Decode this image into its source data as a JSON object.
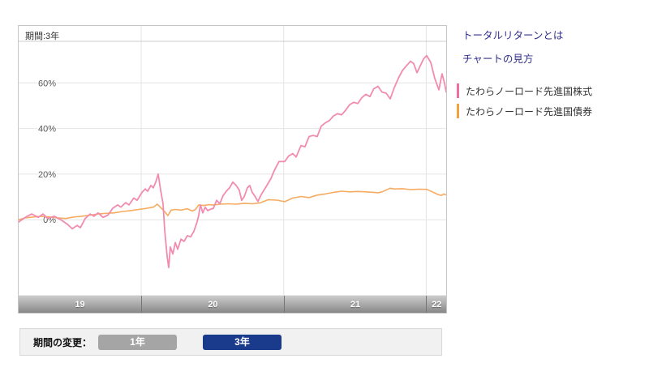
{
  "chart_data": {
    "type": "line",
    "title": "期間:3年",
    "x_axis_labels": [
      "19",
      "20",
      "21",
      "22"
    ],
    "x_gridlines": [
      2020,
      2021,
      2022
    ],
    "y_gridlines": [
      0,
      20,
      40,
      60
    ],
    "y_unit": "%",
    "xlim": [
      2019.14,
      2022.14
    ],
    "ylim": [
      -33,
      85
    ],
    "grid": true,
    "legend_position": "right",
    "series": [
      {
        "name": "たわらノーロード先進国債券",
        "color": "#f6ab60",
        "width": 1.6,
        "points": [
          [
            2019.14,
            0
          ],
          [
            2019.186,
            0.8
          ],
          [
            2019.242,
            1.2
          ],
          [
            2019.299,
            1.5
          ],
          [
            2019.356,
            1.2
          ],
          [
            2019.413,
            0.8
          ],
          [
            2019.47,
            0.5
          ],
          [
            2019.527,
            1.2
          ],
          [
            2019.584,
            1.5
          ],
          [
            2019.641,
            2
          ],
          [
            2019.698,
            2.5
          ],
          [
            2019.755,
            2.8
          ],
          [
            2019.812,
            3
          ],
          [
            2019.869,
            3.6
          ],
          [
            2019.926,
            4
          ],
          [
            2019.983,
            4.5
          ],
          [
            2020.039,
            5
          ],
          [
            2020.085,
            5.5
          ],
          [
            2020.113,
            6.8
          ],
          [
            2020.142,
            5
          ],
          [
            2020.165,
            3.5
          ],
          [
            2020.187,
            1.8
          ],
          [
            2020.21,
            4.2
          ],
          [
            2020.239,
            4.5
          ],
          [
            2020.279,
            4.2
          ],
          [
            2020.324,
            4.8
          ],
          [
            2020.358,
            3.8
          ],
          [
            2020.381,
            4.5
          ],
          [
            2020.404,
            6.5
          ],
          [
            2020.438,
            6.2
          ],
          [
            2020.472,
            6.6
          ],
          [
            2020.506,
            6.4
          ],
          [
            2020.552,
            6.8
          ],
          [
            2020.609,
            7
          ],
          [
            2020.666,
            6.8
          ],
          [
            2020.722,
            7.2
          ],
          [
            2020.779,
            7
          ],
          [
            2020.836,
            7.4
          ],
          [
            2020.893,
            8.8
          ],
          [
            2020.95,
            8.6
          ],
          [
            2021.007,
            7.9
          ],
          [
            2021.064,
            9.5
          ],
          [
            2021.121,
            10.2
          ],
          [
            2021.178,
            9.7
          ],
          [
            2021.235,
            10.8
          ],
          [
            2021.292,
            11.3
          ],
          [
            2021.349,
            12
          ],
          [
            2021.406,
            12.5
          ],
          [
            2021.463,
            12.2
          ],
          [
            2021.52,
            12.4
          ],
          [
            2021.576,
            12.2
          ],
          [
            2021.633,
            12
          ],
          [
            2021.662,
            11.8
          ],
          [
            2021.69,
            12.2
          ],
          [
            2021.747,
            13.8
          ],
          [
            2021.776,
            13.5
          ],
          [
            2021.833,
            13.6
          ],
          [
            2021.89,
            13.2
          ],
          [
            2021.947,
            13.4
          ],
          [
            2022.003,
            13.3
          ],
          [
            2022.043,
            12.2
          ],
          [
            2022.077,
            11.2
          ],
          [
            2022.106,
            10.6
          ],
          [
            2022.123,
            11.3
          ],
          [
            2022.14,
            10.9
          ]
        ]
      },
      {
        "name": "たわらノーロード先進国株式",
        "color": "#f18bb0",
        "width": 1.8,
        "points": [
          [
            2019.14,
            -1
          ],
          [
            2019.186,
            1
          ],
          [
            2019.231,
            2.5
          ],
          [
            2019.277,
            1
          ],
          [
            2019.311,
            2.5
          ],
          [
            2019.345,
            0.5
          ],
          [
            2019.39,
            1.5
          ],
          [
            2019.436,
            0
          ],
          [
            2019.482,
            -2
          ],
          [
            2019.516,
            -4
          ],
          [
            2019.55,
            -2.5
          ],
          [
            2019.573,
            -3.5
          ],
          [
            2019.607,
            0.5
          ],
          [
            2019.641,
            2.5
          ],
          [
            2019.669,
            1.5
          ],
          [
            2019.698,
            3
          ],
          [
            2019.732,
            1
          ],
          [
            2019.766,
            2
          ],
          [
            2019.8,
            5
          ],
          [
            2019.835,
            6.5
          ],
          [
            2019.857,
            5.5
          ],
          [
            2019.891,
            7.5
          ],
          [
            2019.914,
            6.5
          ],
          [
            2019.948,
            9.5
          ],
          [
            2019.971,
            8.5
          ],
          [
            2020.005,
            12
          ],
          [
            2020.028,
            13.5
          ],
          [
            2020.045,
            12.5
          ],
          [
            2020.068,
            15
          ],
          [
            2020.085,
            14
          ],
          [
            2020.102,
            16.5
          ],
          [
            2020.119,
            20
          ],
          [
            2020.136,
            13
          ],
          [
            2020.153,
            7
          ],
          [
            2020.165,
            -5
          ],
          [
            2020.182,
            -16
          ],
          [
            2020.193,
            -21
          ],
          [
            2020.204,
            -12
          ],
          [
            2020.222,
            -15
          ],
          [
            2020.239,
            -10
          ],
          [
            2020.256,
            -13
          ],
          [
            2020.279,
            -8.5
          ],
          [
            2020.301,
            -9.5
          ],
          [
            2020.324,
            -7
          ],
          [
            2020.347,
            -7.5
          ],
          [
            2020.37,
            -5
          ],
          [
            2020.392,
            -1
          ],
          [
            2020.404,
            2
          ],
          [
            2020.415,
            6.5
          ],
          [
            2020.432,
            3
          ],
          [
            2020.449,
            5.5
          ],
          [
            2020.466,
            4
          ],
          [
            2020.483,
            4.5
          ],
          [
            2020.506,
            5
          ],
          [
            2020.529,
            8.5
          ],
          [
            2020.552,
            7
          ],
          [
            2020.574,
            10.5
          ],
          [
            2020.597,
            12.5
          ],
          [
            2020.62,
            14
          ],
          [
            2020.643,
            16.5
          ],
          [
            2020.666,
            15
          ],
          [
            2020.688,
            13
          ],
          [
            2020.705,
            8.5
          ],
          [
            2020.722,
            10
          ],
          [
            2020.745,
            14
          ],
          [
            2020.762,
            15
          ],
          [
            2020.779,
            12
          ],
          [
            2020.796,
            10.5
          ],
          [
            2020.819,
            8
          ],
          [
            2020.842,
            11
          ],
          [
            2020.876,
            14.5
          ],
          [
            2020.91,
            18
          ],
          [
            2020.933,
            21.5
          ],
          [
            2020.967,
            25.5
          ],
          [
            2021.007,
            25.5
          ],
          [
            2021.035,
            28
          ],
          [
            2021.064,
            29
          ],
          [
            2021.087,
            27.5
          ],
          [
            2021.121,
            32.5
          ],
          [
            2021.149,
            32
          ],
          [
            2021.178,
            36.5
          ],
          [
            2021.206,
            37
          ],
          [
            2021.235,
            36.5
          ],
          [
            2021.263,
            41
          ],
          [
            2021.292,
            42.5
          ],
          [
            2021.32,
            43.5
          ],
          [
            2021.349,
            45.5
          ],
          [
            2021.377,
            46.5
          ],
          [
            2021.406,
            46
          ],
          [
            2021.434,
            48
          ],
          [
            2021.463,
            50.5
          ],
          [
            2021.491,
            51.5
          ],
          [
            2021.52,
            51
          ],
          [
            2021.548,
            53.5
          ],
          [
            2021.576,
            55
          ],
          [
            2021.605,
            54
          ],
          [
            2021.633,
            57.5
          ],
          [
            2021.662,
            58.5
          ],
          [
            2021.69,
            56
          ],
          [
            2021.719,
            55.5
          ],
          [
            2021.747,
            53
          ],
          [
            2021.776,
            58
          ],
          [
            2021.804,
            62
          ],
          [
            2021.833,
            65.5
          ],
          [
            2021.861,
            67.5
          ],
          [
            2021.89,
            69.5
          ],
          [
            2021.912,
            68.5
          ],
          [
            2021.935,
            64.5
          ],
          [
            2021.958,
            67.5
          ],
          [
            2021.981,
            70.5
          ],
          [
            2022.003,
            72
          ],
          [
            2022.032,
            69
          ],
          [
            2022.06,
            62
          ],
          [
            2022.089,
            57
          ],
          [
            2022.111,
            64
          ],
          [
            2022.128,
            60
          ],
          [
            2022.14,
            56
          ]
        ]
      }
    ]
  },
  "links": {
    "color": "#32308f",
    "total_return": "トータルリターンとは",
    "how_to_read": "チャートの見方"
  },
  "legend": {
    "items": [
      {
        "label": "たわらノーロード先進国株式",
        "color": "#ee6f9f"
      },
      {
        "label": "たわらノーロード先進国債券",
        "color": "#f5a141"
      }
    ]
  },
  "controls": {
    "label": "期間の変更：",
    "buttons": [
      {
        "label": "1年",
        "color": "#a5a5a5",
        "active": false
      },
      {
        "label": "3年",
        "color": "#1a3a8c",
        "active": true
      }
    ]
  }
}
